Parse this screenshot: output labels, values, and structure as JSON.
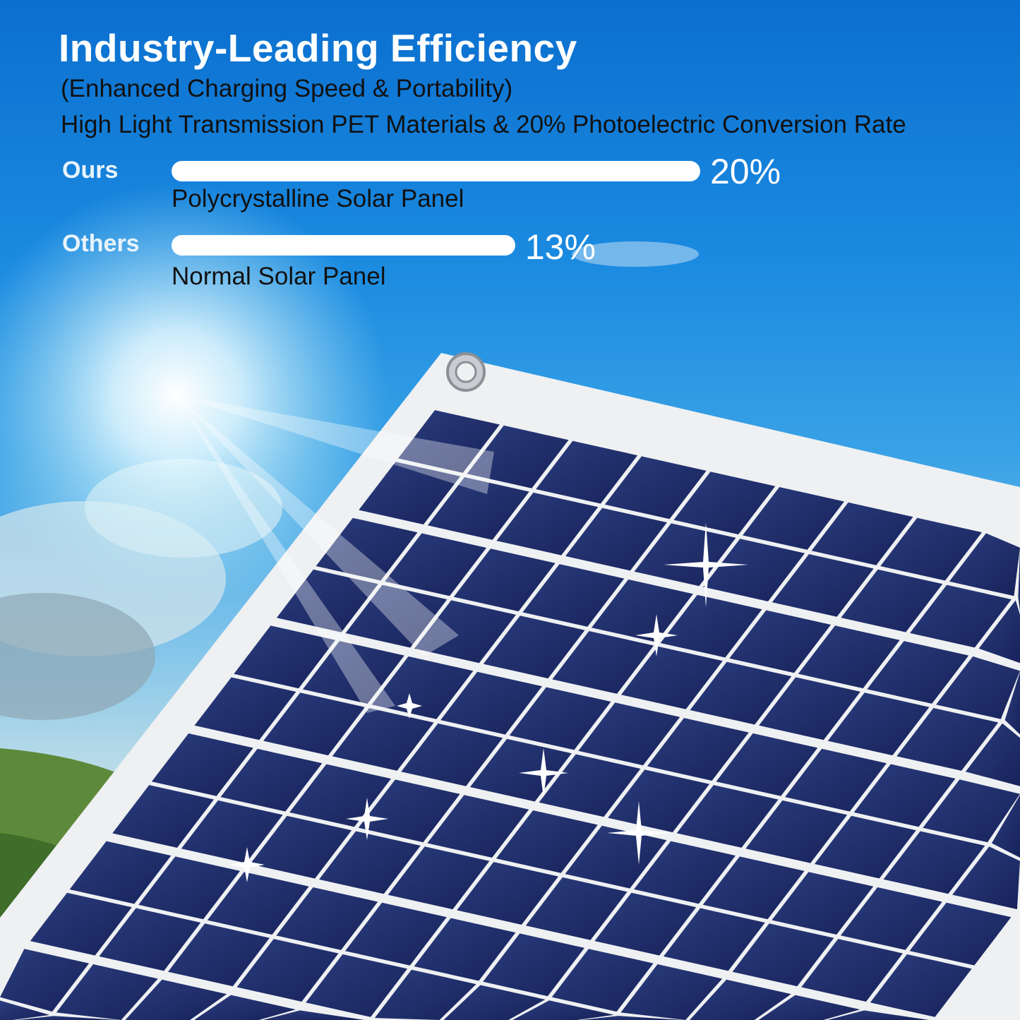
{
  "heading": {
    "title": "Industry-Leading Efficiency",
    "subtitle": "(Enhanced Charging Speed & Portability)",
    "tagline": "High Light Transmission PET Materials & 20% Photoelectric Conversion Rate"
  },
  "comparison": {
    "max_value": 20,
    "items": [
      {
        "label": "Ours",
        "value": 20,
        "value_label": "20%",
        "description": "Polycrystalline Solar Panel"
      },
      {
        "label": "Others",
        "value": 13,
        "value_label": "13%",
        "description": "Normal Solar Panel"
      }
    ]
  },
  "colors": {
    "sky": "#1a8ae0",
    "bar": "#ffffff",
    "cell": "#1c2a63",
    "frame": "#eef0f2"
  }
}
